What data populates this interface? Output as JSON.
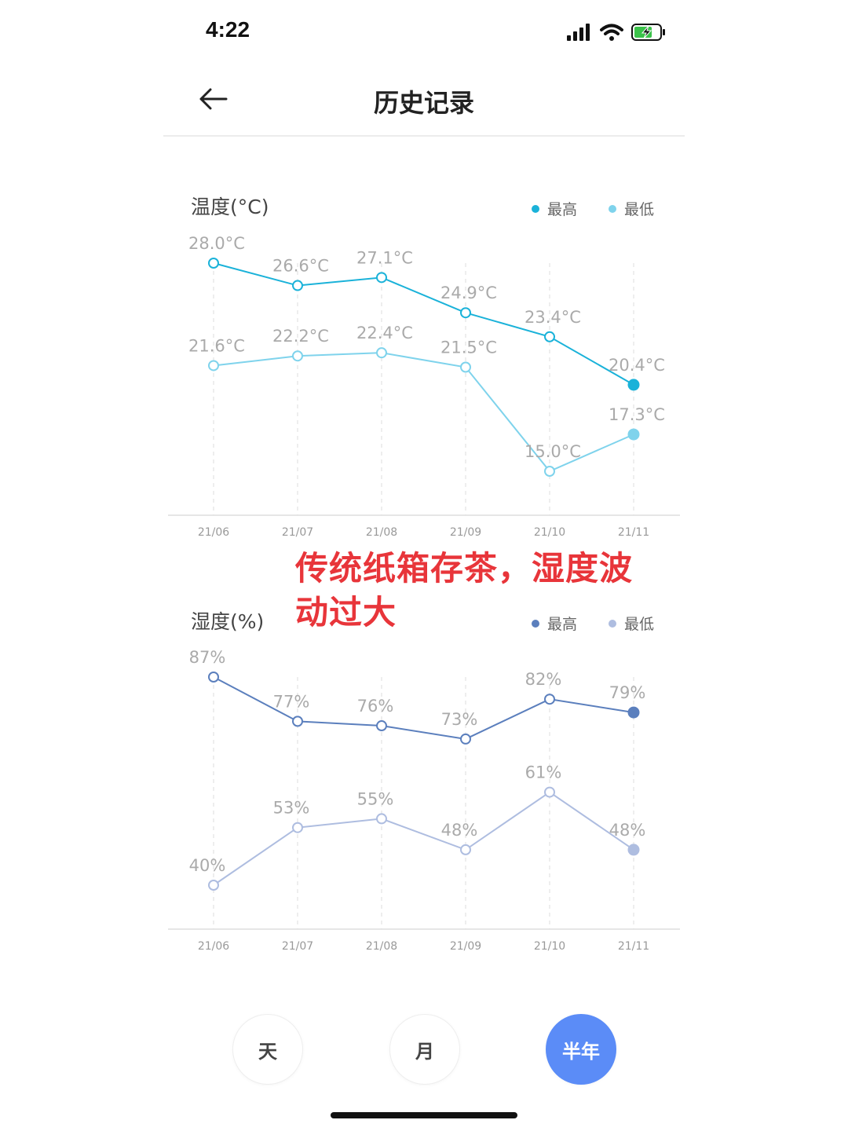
{
  "status": {
    "time": "4:22"
  },
  "header": {
    "title": "历史记录"
  },
  "charts": {
    "temp": {
      "title": "温度(°C)",
      "legend_high": "最高",
      "legend_low": "最低",
      "color_high": "#1ab2d9",
      "color_low": "#7fd3ec"
    },
    "hum": {
      "title": "湿度(%)",
      "legend_high": "最高",
      "legend_low": "最低",
      "color_high": "#5b7fbd",
      "color_low": "#aebde0"
    }
  },
  "chart_data": [
    {
      "type": "line",
      "title": "温度(°C)",
      "categories": [
        "21/06",
        "21/07",
        "21/08",
        "21/09",
        "21/10",
        "21/11"
      ],
      "series": [
        {
          "name": "最高",
          "values": [
            28.0,
            26.6,
            27.1,
            24.9,
            23.4,
            20.4
          ],
          "labels": [
            "28.0°C",
            "26.6°C",
            "27.1°C",
            "24.9°C",
            "23.4°C",
            "20.4°C"
          ]
        },
        {
          "name": "最低",
          "values": [
            21.6,
            22.2,
            22.4,
            21.5,
            15.0,
            17.3
          ],
          "labels": [
            "21.6°C",
            "22.2°C",
            "22.4°C",
            "21.5°C",
            "15.0°C",
            "17.3°C"
          ]
        }
      ],
      "legend": "top-right"
    },
    {
      "type": "line",
      "title": "湿度(%)",
      "categories": [
        "21/06",
        "21/07",
        "21/08",
        "21/09",
        "21/10",
        "21/11"
      ],
      "series": [
        {
          "name": "最高",
          "values": [
            87,
            77,
            76,
            73,
            82,
            79
          ],
          "labels": [
            "87%",
            "77%",
            "76%",
            "73%",
            "82%",
            "79%"
          ]
        },
        {
          "name": "最低",
          "values": [
            40,
            53,
            55,
            48,
            61,
            48
          ],
          "labels": [
            "40%",
            "53%",
            "55%",
            "48%",
            "61%",
            "48%"
          ]
        }
      ],
      "legend": "top-right"
    }
  ],
  "annotation": {
    "text": "传统纸箱存茶，湿度波动过大",
    "color": "#e8353a"
  },
  "periods": [
    {
      "label": "天",
      "active": false
    },
    {
      "label": "月",
      "active": false
    },
    {
      "label": "半年",
      "active": true
    }
  ]
}
